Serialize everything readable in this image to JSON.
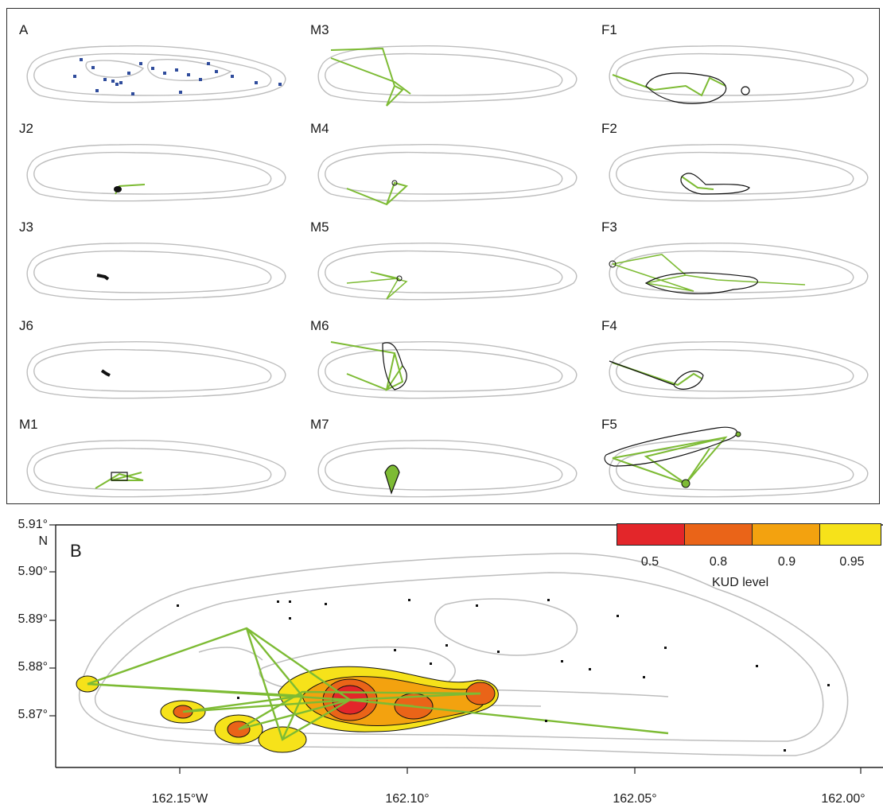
{
  "panel_a": {
    "label": "A",
    "maps": [
      {
        "id": "A",
        "label": "A"
      },
      {
        "id": "M3",
        "label": "M3"
      },
      {
        "id": "F1",
        "label": "F1"
      },
      {
        "id": "J2",
        "label": "J2"
      },
      {
        "id": "M4",
        "label": "M4"
      },
      {
        "id": "F2",
        "label": "F2"
      },
      {
        "id": "J3",
        "label": "J3"
      },
      {
        "id": "M5",
        "label": "M5"
      },
      {
        "id": "F3",
        "label": "F3"
      },
      {
        "id": "J6",
        "label": "J6"
      },
      {
        "id": "M6",
        "label": "M6"
      },
      {
        "id": "F4",
        "label": "F4"
      },
      {
        "id": "M1",
        "label": "M1"
      },
      {
        "id": "M7",
        "label": "M7"
      },
      {
        "id": "F5",
        "label": "F5"
      }
    ]
  },
  "panel_b": {
    "label": "B",
    "y_ticks": [
      "5.91°",
      "N",
      "5.90°",
      "5.89°",
      "5.88°",
      "5.87°"
    ],
    "x_ticks": [
      "162.15°W",
      "162.10°",
      "162.05°",
      "162.00°"
    ],
    "legend": {
      "title": "KUD level",
      "levels": [
        "0.5",
        "0.8",
        "0.9",
        "0.95"
      ],
      "colors": [
        "#e3262a",
        "#ea6418",
        "#f3a20f",
        "#f6e21a"
      ]
    }
  },
  "colors": {
    "atoll_outline": "#bdbdbd",
    "track": "#7dbb34",
    "receiver_blue": "#2f4c9c",
    "contour": "#111111"
  }
}
